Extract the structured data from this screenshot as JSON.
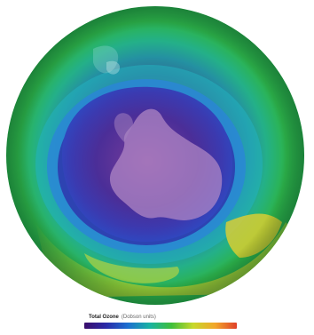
{
  "map": {
    "subject": "Antarctic ozone hole",
    "projection": "polar-south"
  },
  "legend": {
    "title": "Total Ozone",
    "units": "(Dobson units)",
    "colors": [
      "#3a0d6b",
      "#2a2aa8",
      "#1c6fd0",
      "#19b3a3",
      "#3fbf3a",
      "#c7d82a",
      "#f2a62a",
      "#e0402a"
    ]
  }
}
